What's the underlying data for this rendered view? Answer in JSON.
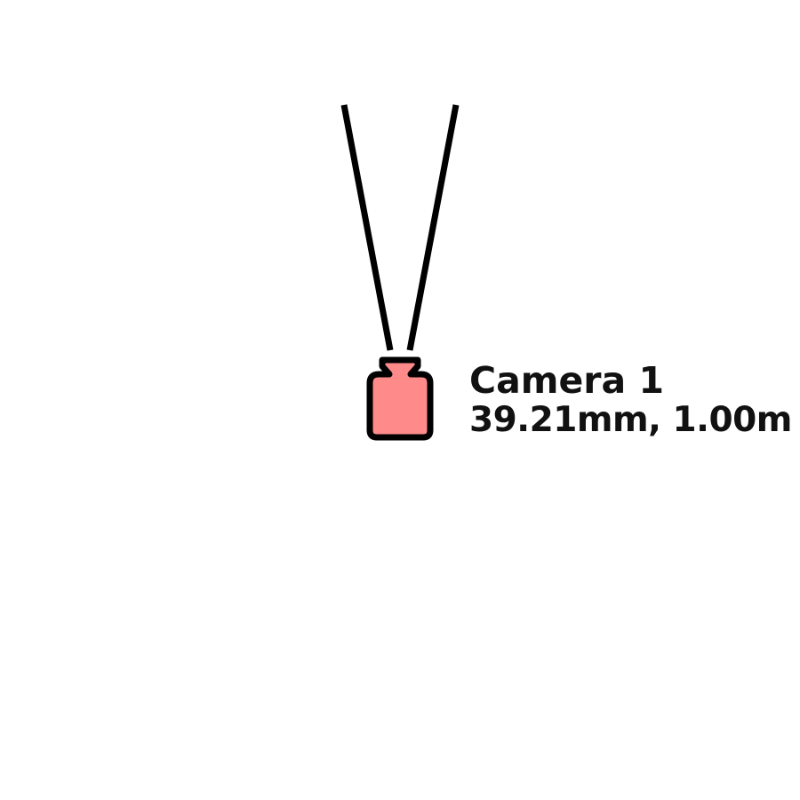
{
  "camera": {
    "name": "Camera 1",
    "params": "39.21mm, 1.00m",
    "icon": "camera-icon",
    "body_color": "#ff8a8a",
    "outline_color": "#000000"
  }
}
